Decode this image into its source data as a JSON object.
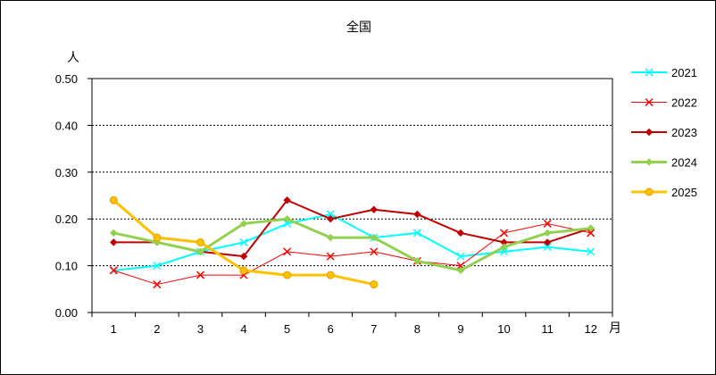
{
  "chart_data": {
    "type": "line",
    "title": "全国",
    "ylabel": "人",
    "xlabel": "月",
    "categories": [
      "1",
      "2",
      "3",
      "4",
      "5",
      "6",
      "7",
      "8",
      "9",
      "10",
      "11",
      "12"
    ],
    "ylim": [
      0,
      0.5
    ],
    "y_ticks": [
      "0.00",
      "0.10",
      "0.20",
      "0.30",
      "0.40",
      "0.50"
    ],
    "grid": "horizontal dashed",
    "legend_position": "right",
    "series": [
      {
        "name": "2021",
        "color": "#00ffff",
        "marker": "x",
        "width": 2,
        "values": [
          0.09,
          0.1,
          0.13,
          0.15,
          0.19,
          0.21,
          0.16,
          0.17,
          0.12,
          0.13,
          0.14,
          0.13
        ]
      },
      {
        "name": "2022",
        "color": "#ff0000",
        "marker": "x",
        "width": 1,
        "values": [
          0.09,
          0.06,
          0.08,
          0.08,
          0.13,
          0.12,
          0.13,
          0.11,
          0.1,
          0.17,
          0.19,
          0.17
        ]
      },
      {
        "name": "2023",
        "color": "#c00000",
        "marker": "diamond",
        "width": 2,
        "values": [
          0.15,
          0.15,
          0.13,
          0.12,
          0.24,
          0.2,
          0.22,
          0.21,
          0.17,
          0.15,
          0.15,
          0.18
        ]
      },
      {
        "name": "2024",
        "color": "#92d050",
        "marker": "diamond",
        "width": 3,
        "values": [
          0.17,
          0.15,
          0.13,
          0.19,
          0.2,
          0.16,
          0.16,
          0.11,
          0.09,
          0.14,
          0.17,
          0.18
        ]
      },
      {
        "name": "2025",
        "color": "#ffc000",
        "marker": "circle",
        "width": 3,
        "values": [
          0.24,
          0.16,
          0.15,
          0.09,
          0.08,
          0.08,
          0.06,
          null,
          null,
          null,
          null,
          null
        ]
      }
    ]
  }
}
